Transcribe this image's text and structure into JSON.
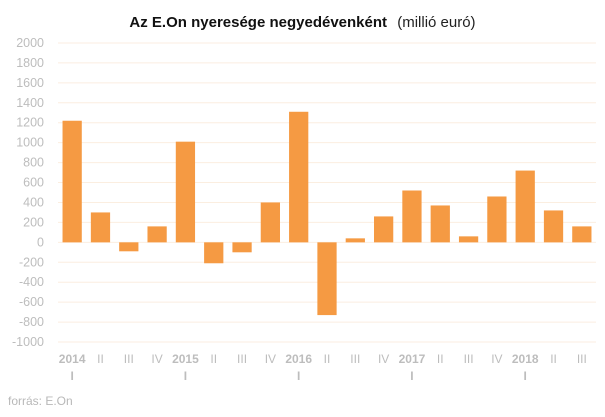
{
  "chart_data": {
    "type": "bar",
    "title": "Az E.On nyeresége negyedévenként",
    "subtitle": "(millió euró)",
    "xlabel": "",
    "ylabel": "",
    "ylim": [
      -1000,
      2000
    ],
    "yticks": [
      2000,
      1800,
      1600,
      1400,
      1200,
      1000,
      800,
      600,
      400,
      200,
      0,
      -200,
      -400,
      -600,
      -800,
      -1000
    ],
    "grid": true,
    "categories": [
      {
        "q": "I",
        "year": "2014"
      },
      {
        "q": "II",
        "year": ""
      },
      {
        "q": "III",
        "year": ""
      },
      {
        "q": "IV",
        "year": ""
      },
      {
        "q": "I",
        "year": "2015"
      },
      {
        "q": "II",
        "year": ""
      },
      {
        "q": "III",
        "year": ""
      },
      {
        "q": "IV",
        "year": ""
      },
      {
        "q": "I",
        "year": "2016"
      },
      {
        "q": "II",
        "year": ""
      },
      {
        "q": "III",
        "year": ""
      },
      {
        "q": "IV",
        "year": ""
      },
      {
        "q": "I",
        "year": "2017"
      },
      {
        "q": "II",
        "year": ""
      },
      {
        "q": "III",
        "year": ""
      },
      {
        "q": "IV",
        "year": ""
      },
      {
        "q": "I",
        "year": "2018"
      },
      {
        "q": "II",
        "year": ""
      },
      {
        "q": "III",
        "year": ""
      }
    ],
    "values": [
      1220,
      300,
      -90,
      160,
      1010,
      -210,
      -100,
      400,
      1310,
      -730,
      40,
      260,
      520,
      370,
      60,
      460,
      720,
      320,
      160
    ],
    "bar_color": "#f59a43",
    "grid_color": "#fbeee0",
    "tick_color": "#bdbdbd"
  },
  "source": "forrás: E.On"
}
